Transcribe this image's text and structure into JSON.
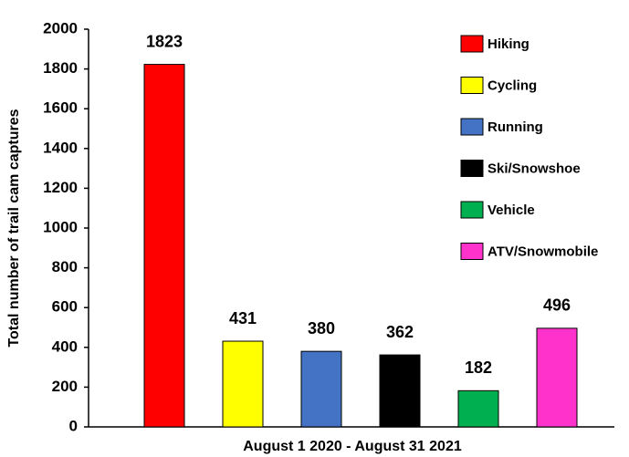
{
  "chart_data": {
    "type": "bar",
    "categories": [
      "Hiking",
      "Cycling",
      "Running",
      "Ski/Snowshoe",
      "Vehicle",
      "ATV/Snowmobile"
    ],
    "values": [
      1823,
      431,
      380,
      362,
      182,
      496
    ],
    "colors": [
      "#ff0000",
      "#ffff00",
      "#4472c4",
      "#000000",
      "#00b050",
      "#ff33cc"
    ],
    "ylabel": "Total number of trail cam captures",
    "xlabel": "August 1 2020 - August 31 2021",
    "ylim": [
      0,
      2000
    ],
    "yticks": [
      0,
      200,
      400,
      600,
      800,
      1000,
      1200,
      1400,
      1600,
      1800,
      2000
    ],
    "legend": "top-right"
  }
}
